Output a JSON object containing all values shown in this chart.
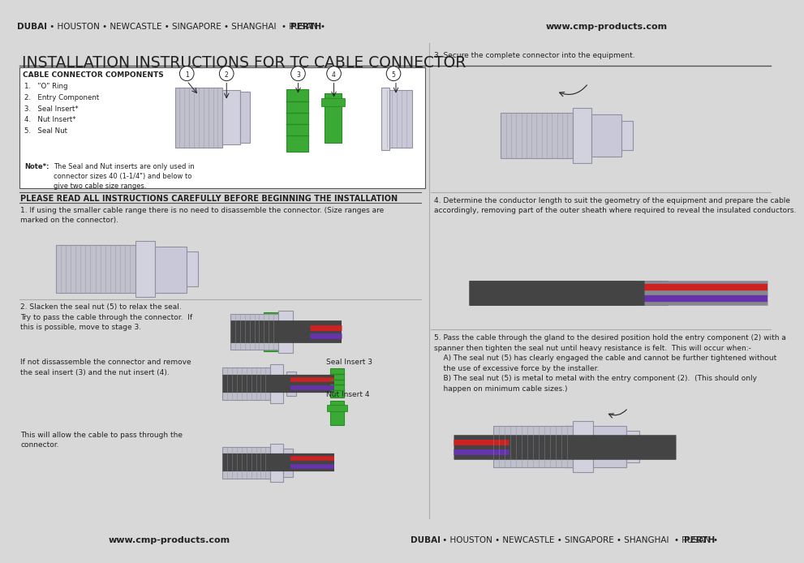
{
  "bg_color": "#d8d8d8",
  "white": "#ffffff",
  "dark_gray": "#222222",
  "mid_gray": "#888888",
  "light_gray": "#cccccc",
  "header_bg": "#d0d0d0",
  "footer_bg": "#d0d0d0",
  "header_left_bold": "DUBAI",
  "header_left_normal": " • HOUSTON • NEWCASTLE • SINGAPORE • SHANGHAI  • PUSAN • ",
  "header_left_bold2": "PERTH",
  "header_right": "www.cmp-products.com",
  "footer_left": "www.cmp-products.com",
  "footer_right_bold1": "DUBAI",
  "footer_right_normal": " • HOUSTON • NEWCASTLE • SINGAPORE • SHANGHAI  • PUSAN • ",
  "footer_right_bold2": "PERTH",
  "main_title": "INSTALLATION INSTRUCTIONS FOR TC CABLE CONNECTOR",
  "components_title": "CABLE CONNECTOR COMPONENTS",
  "comp1": "1.   \"O\" Ring",
  "comp2": "2.   Entry Component",
  "comp3": "3.   Seal Insert*",
  "comp4": "4.   Nut Insert*",
  "comp5": "5.   Seal Nut",
  "note_label": "Note*:",
  "note_body": "The Seal and Nut inserts are only used in\nconnector sizes 40 (1-1/4\") and below to\ngive two cable size ranges.",
  "warning_text": "PLEASE READ ALL INSTRUCTIONS CAREFULLY BEFORE BEGINNING THE INSTALLATION",
  "step1_text": "1. If using the smaller cable range there is no need to disassemble the connector. (Size ranges are\nmarked on the connector).",
  "step2_text": "2. Slacken the seal nut (5) to relax the seal.\nTry to pass the cable through the connector.  If\nthis is possible, move to stage 3.",
  "step2b_text": "If not dissassemble the connector and remove\nthe seal insert (3) and the nut insert (4).",
  "step2c_text": "This will allow the cable to pass through the\nconnector.",
  "seal_insert_label": "Seal Insert 3",
  "nut_insert_label": "Nut Insert 4",
  "step3_text": "3. Secure the complete connector into the equipment.",
  "step4_text": "4. Determine the conductor length to suit the geometry of the equipment and prepare the cable\naccordingly, removing part of the outer sheath where required to reveal the insulated conductors.",
  "step5_text": "5. Pass the cable through the gland to the desired position hold the entry component (2) with a\nspanner then tighten the seal nut until heavy resistance is felt.  This will occur when:-\n    A) The seal nut (5) has clearly engaged the cable and cannot be further tightened without\n    the use of excessive force by the installer.\n    B) The seal nut (5) is metal to metal with the entry component (2).  (This should only\n    happen on minimum cable sizes.)",
  "divider_color": "#aaaaaa",
  "green": "#3aaa35",
  "dark_green": "#2a8a25",
  "cable_dark": "#444444",
  "cable_red": "#cc2222",
  "cable_purple": "#6633aa",
  "connector_gray": "#c0c0cc",
  "connector_edge": "#9090a0"
}
